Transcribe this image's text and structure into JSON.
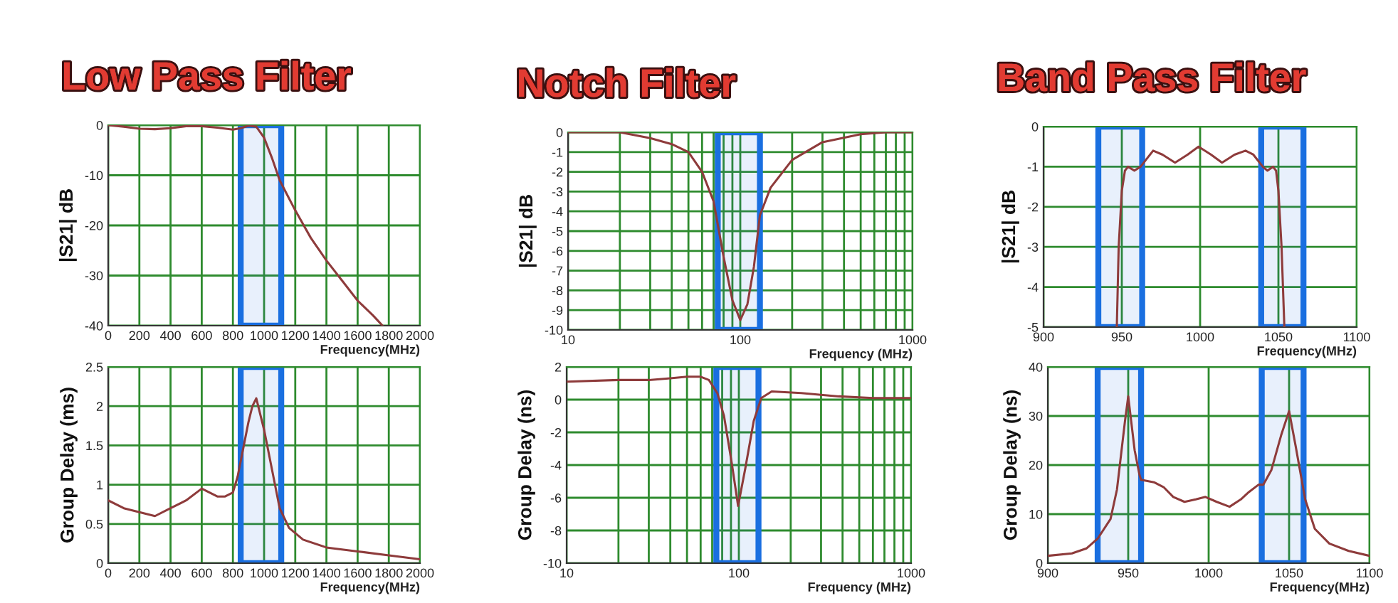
{
  "chart_data": [
    {
      "type": "line",
      "title": "Low Pass Filter",
      "xlabel": "Frequency(MHz)",
      "ylabel": "|S21| dB",
      "color": "#8e3b3b",
      "grid": true,
      "x": [
        0,
        100,
        200,
        300,
        400,
        500,
        600,
        700,
        800,
        850,
        900,
        950,
        1000,
        1050,
        1100,
        1150,
        1200,
        1300,
        1400,
        1500,
        1600,
        1700,
        1760
      ],
      "values": [
        0,
        -0.3,
        -0.7,
        -0.8,
        -0.6,
        -0.2,
        -0.2,
        -0.5,
        -0.9,
        -0.6,
        -0.1,
        -0.3,
        -2.5,
        -6.5,
        -11,
        -14,
        -17,
        -22.5,
        -27,
        -31,
        -35,
        -38,
        -40
      ],
      "xlim": [
        0,
        2000
      ],
      "ylim": [
        -40,
        0
      ],
      "xticks": [
        0,
        200,
        400,
        600,
        800,
        1000,
        1200,
        1400,
        1600,
        1800,
        2000
      ],
      "yticks": [
        0,
        -10,
        -20,
        -30,
        -40
      ],
      "bands": [
        {
          "axis": "x",
          "from": 850,
          "to": 1110,
          "color": "#1a6fe0"
        }
      ]
    },
    {
      "type": "line",
      "xlabel": "Frequency(MHz)",
      "ylabel": "Group Delay (ms)",
      "color": "#8e3b3b",
      "grid": true,
      "x": [
        0,
        100,
        200,
        300,
        400,
        500,
        600,
        700,
        750,
        800,
        830,
        870,
        900,
        925,
        950,
        1000,
        1050,
        1100,
        1160,
        1250,
        1400,
        1600,
        1800,
        2000
      ],
      "values": [
        0.8,
        0.7,
        0.65,
        0.6,
        0.7,
        0.8,
        0.95,
        0.85,
        0.85,
        0.9,
        1.1,
        1.5,
        1.8,
        2.0,
        2.1,
        1.7,
        1.2,
        0.7,
        0.45,
        0.3,
        0.2,
        0.15,
        0.1,
        0.05
      ],
      "xlim": [
        0,
        2000
      ],
      "ylim": [
        0,
        2.5
      ],
      "xticks": [
        0,
        200,
        400,
        600,
        800,
        1000,
        1200,
        1400,
        1600,
        1800,
        2000
      ],
      "yticks": [
        0,
        0.5,
        1,
        1.5,
        2,
        2.5
      ],
      "bands": [
        {
          "axis": "x",
          "from": 850,
          "to": 1110,
          "color": "#1a6fe0"
        }
      ]
    },
    {
      "type": "line",
      "title": "Notch Filter",
      "xlabel": "Frequency (MHz)",
      "ylabel": "|S21| dB",
      "color": "#8e3b3b",
      "grid": true,
      "log": "x",
      "x": [
        10,
        20,
        30,
        40,
        50,
        60,
        70,
        80,
        90,
        100,
        110,
        120,
        130,
        150,
        200,
        300,
        500,
        700,
        1000
      ],
      "values": [
        0,
        0,
        -0.3,
        -0.6,
        -1.0,
        -2.0,
        -3.5,
        -6.3,
        -8.5,
        -9.5,
        -8.7,
        -6.8,
        -4.2,
        -2.8,
        -1.4,
        -0.5,
        -0.1,
        0,
        0
      ],
      "xlim": [
        10,
        1000
      ],
      "ylim": [
        -10,
        0
      ],
      "xticks": [
        10,
        {
          "value": 20,
          "label": null
        },
        {
          "value": 30,
          "label": null
        },
        {
          "value": 40,
          "label": null
        },
        {
          "value": 50,
          "label": null
        },
        {
          "value": 60,
          "label": null
        },
        {
          "value": 70,
          "label": null
        },
        {
          "value": 80,
          "label": null
        },
        {
          "value": 90,
          "label": null
        },
        100,
        {
          "value": 200,
          "label": null
        },
        {
          "value": 300,
          "label": null
        },
        {
          "value": 400,
          "label": null
        },
        {
          "value": 500,
          "label": null
        },
        {
          "value": 600,
          "label": null
        },
        {
          "value": 700,
          "label": null
        },
        {
          "value": 800,
          "label": null
        },
        {
          "value": 900,
          "label": null
        },
        1000
      ],
      "yticks": [
        0,
        -1,
        -2,
        -3,
        -4,
        -5,
        -6,
        -7,
        -8,
        -9,
        -10
      ],
      "bands": [
        {
          "axis": "x",
          "from": 74,
          "to": 130,
          "color": "#1a6fe0"
        }
      ]
    },
    {
      "type": "line",
      "xlabel": "Frequency (MHz)",
      "ylabel": "Group Delay (ns)",
      "color": "#8e3b3b",
      "grid": true,
      "log": "x",
      "x": [
        10,
        20,
        30,
        40,
        50,
        60,
        67,
        75,
        82,
        91,
        99,
        109,
        122,
        135,
        155,
        230,
        380,
        600,
        1000
      ],
      "values": [
        1.1,
        1.2,
        1.2,
        1.3,
        1.4,
        1.4,
        1.2,
        0.4,
        -1,
        -3.9,
        -6.5,
        -4.2,
        -1.3,
        0.1,
        0.5,
        0.4,
        0.2,
        0.1,
        0.1
      ],
      "xlim": [
        10,
        1000
      ],
      "ylim": [
        -10,
        2
      ],
      "xticks": [
        10,
        {
          "value": 20,
          "label": null
        },
        {
          "value": 30,
          "label": null
        },
        {
          "value": 40,
          "label": null
        },
        {
          "value": 50,
          "label": null
        },
        {
          "value": 60,
          "label": null
        },
        {
          "value": 70,
          "label": null
        },
        {
          "value": 80,
          "label": null
        },
        {
          "value": 90,
          "label": null
        },
        100,
        {
          "value": 200,
          "label": null
        },
        {
          "value": 300,
          "label": null
        },
        {
          "value": 400,
          "label": null
        },
        {
          "value": 500,
          "label": null
        },
        {
          "value": 600,
          "label": null
        },
        {
          "value": 700,
          "label": null
        },
        {
          "value": 800,
          "label": null
        },
        {
          "value": 900,
          "label": null
        },
        1000
      ],
      "yticks": [
        2,
        0,
        -2,
        -4,
        -6,
        -8,
        -10
      ],
      "bands": [
        {
          "axis": "x",
          "from": 74,
          "to": 130,
          "color": "#1a6fe0"
        }
      ]
    },
    {
      "type": "line",
      "title": "Band Pass Filter",
      "xlabel": "Frequency(MHz)",
      "ylabel": "|S21| dB",
      "color": "#8e3b3b",
      "grid": true,
      "x": [
        946.8,
        948,
        950,
        952,
        954,
        958,
        962,
        966,
        970,
        976,
        984,
        992,
        999,
        1007,
        1014,
        1022,
        1029,
        1034,
        1040,
        1043,
        1046.5,
        1048.5,
        1050,
        1052,
        1053.8
      ],
      "values": [
        -5,
        -3,
        -1.6,
        -1.1,
        -1.0,
        -1.1,
        -1.0,
        -0.8,
        -0.6,
        -0.7,
        -0.9,
        -0.7,
        -0.5,
        -0.7,
        -0.9,
        -0.7,
        -0.6,
        -0.7,
        -1.0,
        -1.1,
        -1.0,
        -1.1,
        -1.6,
        -3,
        -5
      ],
      "xlim": [
        900,
        1100
      ],
      "ylim": [
        -5,
        0
      ],
      "xticks": [
        900,
        950,
        1000,
        1050,
        1100
      ],
      "yticks": [
        0,
        -1,
        -2,
        -3,
        -4,
        -5
      ],
      "bands": [
        {
          "axis": "x",
          "from": 935,
          "to": 963,
          "color": "#1a6fe0"
        },
        {
          "axis": "x",
          "from": 1039,
          "to": 1066,
          "color": "#1a6fe0"
        }
      ]
    },
    {
      "type": "line",
      "xlabel": "Frequency(MHz)",
      "ylabel": "Group Delay (ns)",
      "color": "#8e3b3b",
      "grid": true,
      "x": [
        900,
        915,
        924,
        931,
        939,
        943,
        948,
        950,
        954,
        957,
        958,
        966,
        972,
        978,
        985,
        992,
        998,
        1005,
        1013,
        1020,
        1025,
        1031,
        1034,
        1039,
        1045,
        1050,
        1054,
        1060,
        1066,
        1075,
        1087,
        1100
      ],
      "values": [
        1.5,
        2,
        3,
        5,
        9,
        15,
        29,
        34,
        23,
        18,
        17,
        16.5,
        15.5,
        13.5,
        12.5,
        13,
        13.5,
        12.5,
        11.5,
        13,
        14.5,
        16,
        16,
        19,
        26,
        31,
        24,
        13,
        7,
        4,
        2.5,
        1.5
      ],
      "xlim": [
        900,
        1100
      ],
      "ylim": [
        0,
        40
      ],
      "xticks": [
        900,
        950,
        1000,
        1050,
        1100
      ],
      "yticks": [
        0,
        10,
        20,
        30,
        40
      ],
      "bands": [
        {
          "axis": "x",
          "from": 931,
          "to": 958,
          "color": "#1a6fe0"
        },
        {
          "axis": "x",
          "from": 1033,
          "to": 1059,
          "color": "#1a6fe0"
        }
      ]
    }
  ]
}
